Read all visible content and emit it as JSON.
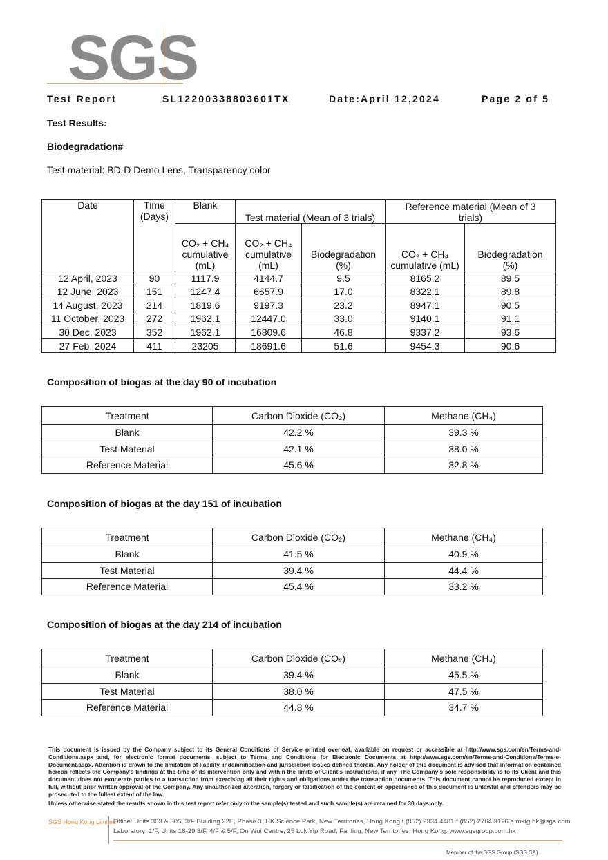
{
  "header": {
    "logo": "SGS",
    "report_label": "Test Report",
    "report_number": "SL12200338803601TX",
    "date": "Date:April 12,2024",
    "page": "Page 2 of 5"
  },
  "section_title": "Test Results:",
  "subsection_title": "Biodegradation#",
  "test_material": "Test material: BD-D Demo Lens, Transparency color",
  "main_table": {
    "header_top": [
      "Date",
      "Time (Days)",
      "Blank",
      "Test material (Mean of 3 trials)",
      "Reference material (Mean of 3 trials)"
    ],
    "header_sub": [
      "CO₂ + CH₄ cumulative (mL)",
      "CO₂ + CH₄ cumulative (mL)",
      "Biodegradation (%)",
      "CO₂ + CH₄ cumulative (mL)",
      "Biodegradation (%)"
    ],
    "rows": [
      [
        "12 April, 2023",
        "90",
        "1117.9",
        "4144.7",
        "9.5",
        "8165.2",
        "89.5"
      ],
      [
        "12 June, 2023",
        "151",
        "1247.4",
        "6657.9",
        "17.0",
        "8322.1",
        "89.8"
      ],
      [
        "14 August, 2023",
        "214",
        "1819.6",
        "9197.3",
        "23.2",
        "8947.1",
        "90.5"
      ],
      [
        "11 October, 2023",
        "272",
        "1962.1",
        "12447.0",
        "33.0",
        "9140.1",
        "91.1"
      ],
      [
        "30 Dec, 2023",
        "352",
        "1962.1",
        "16809.6",
        "46.8",
        "9337.2",
        "93.6"
      ],
      [
        "27 Feb, 2024",
        "411",
        "23205",
        "18691.6",
        "51.6",
        "9454.3",
        "90.6"
      ]
    ]
  },
  "composition_tables": [
    {
      "title": "Composition of biogas at the day 90 of incubation",
      "header": [
        "Treatment",
        "Carbon Dioxide (CO₂)",
        "Methane (CH₄)"
      ],
      "rows": [
        [
          "Blank",
          "42.2 %",
          "39.3 %"
        ],
        [
          "Test Material",
          "42.1 %",
          "38.0 %"
        ],
        [
          "Reference Material",
          "45.6 %",
          "32.8 %"
        ]
      ]
    },
    {
      "title": "Composition of biogas at the day 151 of incubation",
      "header": [
        "Treatment",
        "Carbon Dioxide (CO₂)",
        "Methane (CH₄)"
      ],
      "rows": [
        [
          "Blank",
          "41.5 %",
          "40.9 %"
        ],
        [
          "Test Material",
          "39.4 %",
          "44.4 %"
        ],
        [
          "Reference Material",
          "45.4 %",
          "33.2 %"
        ]
      ]
    },
    {
      "title": "Composition of biogas at the day 214 of incubation",
      "header": [
        "Treatment",
        "Carbon Dioxide (CO₂)",
        "Methane (CH₄)"
      ],
      "rows": [
        [
          "Blank",
          "39.4 %",
          "45.5 %"
        ],
        [
          "Test Material",
          "38.0 %",
          "47.5 %"
        ],
        [
          "Reference Material",
          "44.8 %",
          "34.7 %"
        ]
      ]
    }
  ],
  "footer": {
    "disclaimer": "This document is issued by the Company subject to its General Conditions of Service printed overleaf, available on request or accessible at http://www.sgs.com/en/Terms-and-Conditions.aspx and, for electronic format documents, subject to Terms and Conditions for Electronic Documents at http://www.sgs.com/en/Terms-and-Conditions/Terms-e-Document.aspx. Attention is drawn to the limitation of liability, indemnification and jurisdiction issues defined therein. Any holder of this document is advised that information contained hereon reflects the Company's findings at the time of its intervention only and within the limits of Client's instructions, if any. The Company's sole responsibility is to its Client and this document does not exonerate parties to a transaction from exercising all their rights and obligations under the transaction documents. This document cannot be reproduced except in full, without prior written approval of the Company. Any unauthorized alteration, forgery or falsification of the content or appearance of this document is unlawful and offenders may be prosecuted to the fullest extent of the law.",
    "retention": "Unless otherwise stated the results shown in this test report refer only to the sample(s) tested and such sample(s) are retained for 30 days only.",
    "company": "SGS Hong Kong Limited",
    "office": "Office: Units 303 & 305, 3/F Building 22E, Phase 3, HK Science Park, New Territories, Hong Kong   t (852) 2334 4481   f (852) 2764 3126   e mktg.hk@sgs.com",
    "laboratory": "Laboratory: 1/F, Units 16-29 3/F, 4/F & 5/F, On Wui Centre, 25 Lok Yip Road, Fanling, New Territories, Hong Kong.   www.sgsgroup.com.hk",
    "member": "Member of the SGS Group (SGS SA)"
  }
}
